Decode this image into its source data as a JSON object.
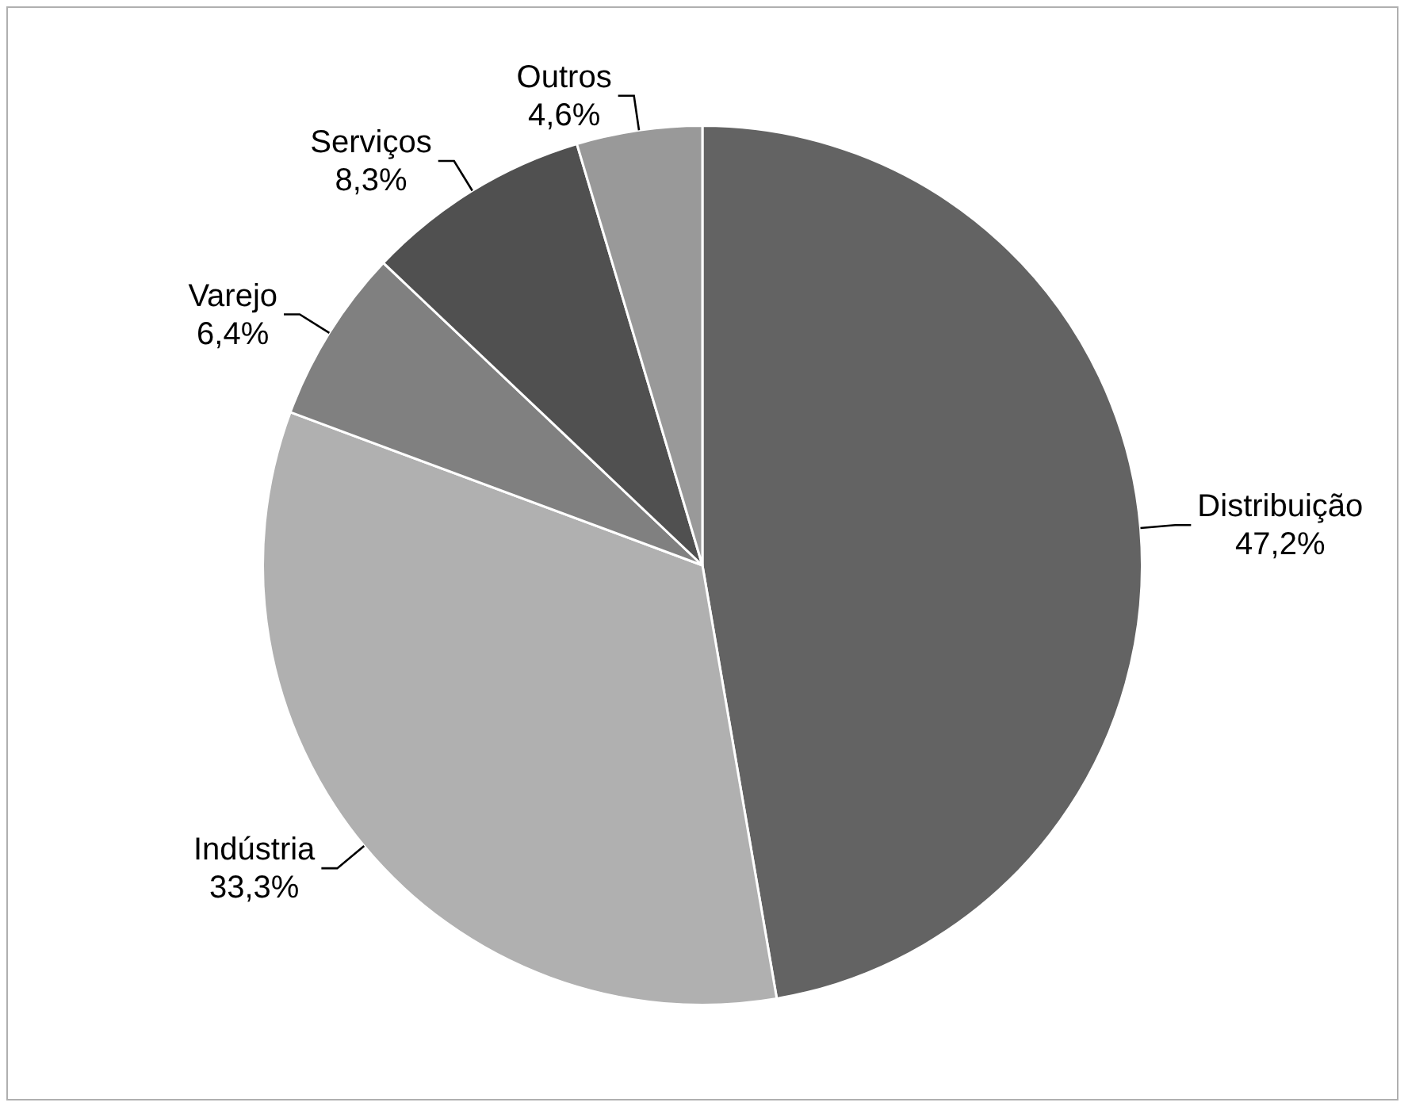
{
  "chart_data": {
    "type": "pie",
    "categories": [
      "Distribuição",
      "Indústria",
      "Varejo",
      "Serviços",
      "Outros"
    ],
    "values": [
      47.2,
      33.3,
      6.4,
      8.3,
      4.6
    ],
    "colors": [
      "#636363",
      "#b0b0b0",
      "#808080",
      "#505050",
      "#999999"
    ],
    "value_labels": [
      "47,2%",
      "33,3%",
      "6,4%",
      "8,3%",
      "4,6%"
    ],
    "legend": false
  }
}
